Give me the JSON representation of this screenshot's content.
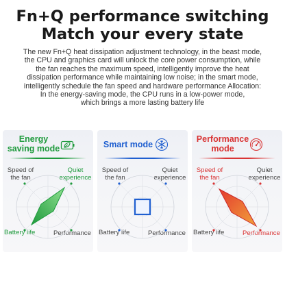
{
  "header": {
    "line1": "Fn+Q performance switching",
    "line2": "Match your every state"
  },
  "description": [
    "The new Fn+Q heat dissipation adjustment technology, in the beast mode,",
    "the CPU and graphics card will unlock the core power consumption, while",
    "the fan reaches the maximum speed, intelligently improve the heat",
    "dissipation performance while maintaining low noise; in the smart mode,",
    "intelligently schedule the fan speed and hardware performance Allocation:",
    "In the energy-saving mode, the CPU runs in a low-power mode,",
    "which brings a more lasting battery life"
  ],
  "colors": {
    "energy": "#1e9a3c",
    "smart": "#1f5fd0",
    "performance": "#d93434"
  },
  "modes": [
    {
      "title_line1": "Energy",
      "title_line2": "saving mode",
      "icon": "leaf-battery-icon",
      "speed_label": [
        "Speed of",
        "the fan"
      ],
      "quiet_label": [
        "Quiet",
        "experience"
      ],
      "battery_label": "Battery life",
      "performance_label": "Performance"
    },
    {
      "title_line1": "Smart mode",
      "icon": "snowflake-icon",
      "speed_label": [
        "Speed of",
        "the fan"
      ],
      "quiet_label": [
        "Quiet",
        "experience"
      ],
      "battery_label": "Battery life",
      "performance_label": "Performance"
    },
    {
      "title_line1": "Performance",
      "title_line2": "mode",
      "icon": "speedometer-icon",
      "speed_label": [
        "Speed of",
        "the fan"
      ],
      "quiet_label": [
        "Quiet",
        "experience"
      ],
      "battery_label": "Battery life",
      "performance_label": "Performance"
    }
  ]
}
